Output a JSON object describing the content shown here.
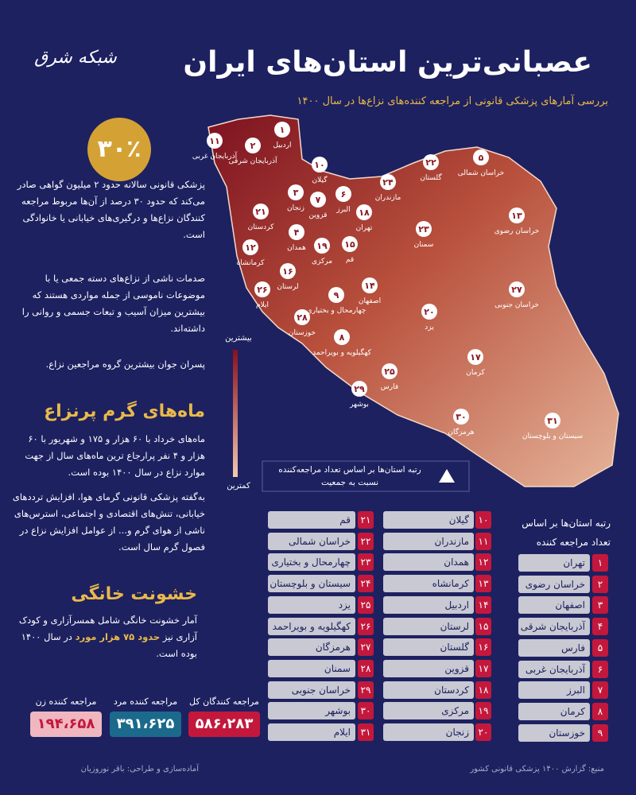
{
  "header": {
    "logo": "شبکه شرق",
    "title": "عصبانی‌ترین استان‌های ایران",
    "subtitle": "بررسی آمارهای پزشکی قانونی از مراجعه کننده‌های نزاع‌ها در سال ۱۴۰۰"
  },
  "stat": {
    "value": "۳۰٪"
  },
  "intro": [
    "پزشکی قانونی سالانه حدود ۲ میلیون گواهی صادر می‌کند که حدود ۳۰ درصد از آن‌ها مربوط مراجعه کنندگان نزاع‌ها و درگیری‌های خیابانی یا خانوادگی است.",
    "صدمات ناشی از نزاع‌های دسته جمعی یا با موضوعات ناموسی از جمله مواردی هستند که بیشترین میزان آسیب و تبعات جسمی و روانی را داشته‌اند.",
    "پسران جوان بیشترین گروه مراجعین نزاع."
  ],
  "hot_months": {
    "heading": "ماه‌های گرم پرنزاع",
    "paragraphs": [
      "ماه‌های خرداد با ۶۰ هزار و ۱۷۵ و شهریور با ۶۰ هزار و ۴ نفر پرارجاع ترین ماه‌های سال از جهت موارد نزاع در سال ۱۴۰۰ بوده است.",
      "به‌گفته پزشکی قانونی گرمای هوا، افزایش ترددهای خیابانی، تنش‌های اقتصادی و اجتماعی، استرس‌های ناشی از هوای گرم و... از عوامل افزایش نزاع در فصول گرم سال است."
    ]
  },
  "domestic": {
    "heading": "خشونت خانگی",
    "parts": [
      "آمار خشونت خانگی شامل همسرآزاری و کودک آزاری نیز ",
      "حدود ۷۵ هزار مورد",
      " در سال ۱۴۰۰ بوده است."
    ]
  },
  "totals": [
    {
      "label": "مراجعه کنندگان کل",
      "value": "۵۸۶،۲۸۳"
    },
    {
      "label": "مراجعه کننده مرد",
      "value": "۳۹۱،۶۲۵"
    },
    {
      "label": "مراجعه کننده زن",
      "value": "۱۹۴،۶۵۸"
    }
  ],
  "ranking": {
    "title": "رتبه استان‌ها بر اساس تعداد مراجعه کننده",
    "rows": [
      {
        "rank": "۱",
        "name": "تهران"
      },
      {
        "rank": "۲",
        "name": "خراسان رضوی"
      },
      {
        "rank": "۳",
        "name": "اصفهان"
      },
      {
        "rank": "۴",
        "name": "آذربایجان شرقی"
      },
      {
        "rank": "۵",
        "name": "فارس"
      },
      {
        "rank": "۶",
        "name": "آذربایجان غربی"
      },
      {
        "rank": "۷",
        "name": "البرز"
      },
      {
        "rank": "۸",
        "name": "کرمان"
      },
      {
        "rank": "۹",
        "name": "خوزستان"
      },
      {
        "rank": "۱۰",
        "name": "گیلان"
      },
      {
        "rank": "۱۱",
        "name": "مازندران"
      },
      {
        "rank": "۱۲",
        "name": "همدان"
      },
      {
        "rank": "۱۳",
        "name": "کرمانشاه"
      },
      {
        "rank": "۱۴",
        "name": "اردبیل"
      },
      {
        "rank": "۱۵",
        "name": "لرستان"
      },
      {
        "rank": "۱۶",
        "name": "گلستان"
      },
      {
        "rank": "۱۷",
        "name": "قزوین"
      },
      {
        "rank": "۱۸",
        "name": "کردستان"
      },
      {
        "rank": "۱۹",
        "name": "مرکزی"
      },
      {
        "rank": "۲۰",
        "name": "زنجان"
      },
      {
        "rank": "۲۱",
        "name": "قم"
      },
      {
        "rank": "۲۲",
        "name": "خراسان شمالی"
      },
      {
        "rank": "۲۳",
        "name": "چهارمحال و بختیاری"
      },
      {
        "rank": "۲۴",
        "name": "سیستان و بلوچستان"
      },
      {
        "rank": "۲۵",
        "name": "یزد"
      },
      {
        "rank": "۲۶",
        "name": "کهگیلویه و بویراحمد"
      },
      {
        "rank": "۲۷",
        "name": "هرمزگان"
      },
      {
        "rank": "۲۸",
        "name": "سمنان"
      },
      {
        "rank": "۲۹",
        "name": "خراسان جنوبی"
      },
      {
        "rank": "۳۰",
        "name": "بوشهر"
      },
      {
        "rank": "۳۱",
        "name": "ایلام"
      }
    ]
  },
  "map": {
    "labels": [
      {
        "rank": "۱",
        "name": "اردبیل"
      },
      {
        "rank": "۲",
        "name": "آذربایجان شرقی"
      },
      {
        "rank": "۱۱",
        "name": "آذربایجان غربی"
      },
      {
        "rank": "۱۰",
        "name": "گیلان"
      },
      {
        "rank": "۳",
        "name": "زنجان"
      },
      {
        "rank": "۷",
        "name": "قزوین"
      },
      {
        "rank": "۶",
        "name": "البرز"
      },
      {
        "rank": "۱۸",
        "name": "تهران"
      },
      {
        "rank": "۲۴",
        "name": "مازندران"
      },
      {
        "rank": "۲۲",
        "name": "گلستان"
      },
      {
        "rank": "۵",
        "name": "خراسان شمالی"
      },
      {
        "rank": "۱۳",
        "name": "خراسان رضوی"
      },
      {
        "rank": "۲۱",
        "name": "کردستان"
      },
      {
        "rank": "۴",
        "name": "همدان"
      },
      {
        "rank": "۱۹",
        "name": "مرکزی"
      },
      {
        "rank": "۱۵",
        "name": "قم"
      },
      {
        "rank": "۲۳",
        "name": "سمنان"
      },
      {
        "rank": "۱۲",
        "name": "کرمانشاه"
      },
      {
        "rank": "۱۶",
        "name": "لرستان"
      },
      {
        "rank": "۲۶",
        "name": "ایلام"
      },
      {
        "rank": "۱۴",
        "name": "اصفهان"
      },
      {
        "rank": "۹",
        "name": "چهارمحال و بختیاری"
      },
      {
        "rank": "۲۷",
        "name": "خراسان جنوبی"
      },
      {
        "rank": "۲۸",
        "name": "خوزستان"
      },
      {
        "rank": "۲۰",
        "name": "یزد"
      },
      {
        "rank": "۸",
        "name": "کهگیلویه و بویراحمد"
      },
      {
        "rank": "۱۷",
        "name": "کرمان"
      },
      {
        "rank": "۲۵",
        "name": "فارس"
      },
      {
        "rank": "۲۹",
        "name": "بوشهر"
      },
      {
        "rank": "۳۰",
        "name": "هرمزگان"
      },
      {
        "rank": "۳۱",
        "name": "سیستان و بلوچستان"
      }
    ],
    "legend_high": "بیشترین",
    "legend_low": "کمترین",
    "note": "رتبه استان‌ها بر اساس تعداد مراجعه‌کننده نسبت به جمعیت"
  },
  "footer": {
    "source": "منبع: گزارش ۱۴۰۰ پزشکی قانونی کشور",
    "credit": "آماده‌سازی و طراحی: باقر نوروزیان"
  }
}
